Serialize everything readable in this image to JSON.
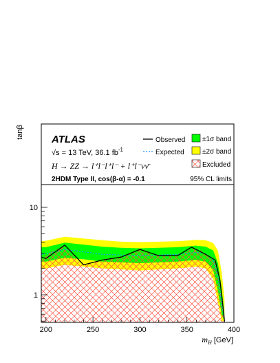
{
  "chart_data": {
    "type": "area",
    "xlabel_var": "m",
    "xlabel_sub": "H",
    "xlabel_unit": "[GeV]",
    "ylabel": "tanβ",
    "xlim": [
      195,
      400
    ],
    "ylim": [
      0.5,
      40
    ],
    "yscale": "log",
    "x_ticks": [
      {
        "value": 200,
        "label": "200"
      },
      {
        "value": 250,
        "label": "250"
      },
      {
        "value": 300,
        "label": "300"
      },
      {
        "value": 350,
        "label": "350"
      },
      {
        "value": 400,
        "label": "400"
      }
    ],
    "y_ticks": [
      {
        "value": 1,
        "label": "1"
      },
      {
        "value": 10,
        "label": "10"
      }
    ],
    "grid": false,
    "header": {
      "experiment": "ATLAS",
      "energy_lumi": "√s = 13 TeV, 36.1 fb",
      "lumi_exp": "-1",
      "process": "H → ZZ → l⁺l⁻l⁺l⁻ + l⁺l⁻νν̄",
      "model": "2HDM Type II, cos(β-α) = -0.1",
      "cl": "95% CL limits"
    },
    "legend": {
      "observed": "Observed",
      "expected": "Expected",
      "band1": "±1σ band",
      "band2": "±2σ band",
      "excluded": "Excluded",
      "placement": "top"
    },
    "colors": {
      "band1": "#00ff00",
      "band2": "#ffff00",
      "observed": "#000000",
      "expected": "#1e90ff",
      "excluded": "#ff4d3a"
    },
    "excluded_lower": {
      "x": [
        195,
        220,
        240,
        260,
        280,
        300,
        320,
        340,
        360,
        370,
        380,
        385,
        390,
        391
      ],
      "y": [
        2.7,
        3.7,
        2.2,
        2.5,
        2.7,
        3.3,
        2.8,
        2.8,
        3.5,
        2.9,
        2.5,
        1.2,
        0.6,
        0.5
      ]
    },
    "observed": {
      "x": [
        195,
        200,
        220,
        240,
        260,
        280,
        300,
        320,
        340,
        355,
        370,
        380,
        385,
        388,
        390
      ],
      "y": [
        2.7,
        2.6,
        3.7,
        2.2,
        2.5,
        2.7,
        3.3,
        2.8,
        2.8,
        3.5,
        2.9,
        2.5,
        1.5,
        0.8,
        0.5
      ]
    },
    "expected": {
      "x": [
        195,
        200,
        220,
        240,
        260,
        280,
        300,
        320,
        340,
        360,
        370,
        378,
        383,
        387,
        390
      ],
      "y": [
        2.9,
        2.95,
        3.3,
        3.1,
        2.9,
        2.85,
        2.8,
        2.85,
        2.9,
        3.05,
        2.95,
        2.5,
        1.6,
        0.8,
        0.5
      ]
    },
    "band1": {
      "x": [
        195,
        200,
        220,
        240,
        260,
        280,
        300,
        320,
        340,
        360,
        370,
        378,
        383,
        387,
        390
      ],
      "upper": [
        3.5,
        3.5,
        3.95,
        3.75,
        3.55,
        3.45,
        3.4,
        3.45,
        3.5,
        3.65,
        3.55,
        3.2,
        2.3,
        1.2,
        0.6
      ],
      "lower": [
        2.4,
        2.4,
        2.65,
        2.55,
        2.4,
        2.35,
        2.3,
        2.35,
        2.4,
        2.5,
        2.4,
        1.9,
        1.1,
        0.6,
        0.5
      ]
    },
    "band2": {
      "x": [
        195,
        200,
        220,
        240,
        260,
        280,
        300,
        320,
        340,
        360,
        370,
        378,
        383,
        387,
        390
      ],
      "upper": [
        4.1,
        4.15,
        4.6,
        4.4,
        4.2,
        4.05,
        4.0,
        4.05,
        4.1,
        4.25,
        4.2,
        3.9,
        3.2,
        1.8,
        0.9
      ],
      "lower": [
        2.0,
        2.0,
        2.2,
        2.1,
        2.0,
        1.95,
        1.9,
        1.95,
        2.0,
        2.1,
        2.0,
        1.5,
        0.8,
        0.5,
        0.5
      ]
    }
  }
}
